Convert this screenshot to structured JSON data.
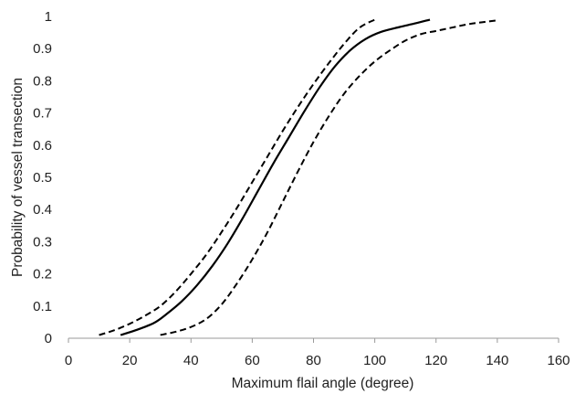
{
  "chart_data": {
    "type": "line",
    "title": "",
    "xlabel": "Maximum flail angle (degree)",
    "ylabel": "Probability of vessel transection",
    "xlim": [
      0,
      160
    ],
    "ylim": [
      0,
      1
    ],
    "xticks": [
      "0",
      "20",
      "40",
      "60",
      "80",
      "100",
      "120",
      "140",
      "160"
    ],
    "yticks": [
      "0",
      "0.1",
      "0.2",
      "0.3",
      "0.4",
      "0.5",
      "0.6",
      "0.7",
      "0.8",
      "0.9",
      "1"
    ],
    "grid": false,
    "legend": "none",
    "series": [
      {
        "style": "solid",
        "color": "#000000",
        "points": [
          [
            17,
            0.01
          ],
          [
            22,
            0.025
          ],
          [
            28,
            0.048
          ],
          [
            32,
            0.075
          ],
          [
            37,
            0.115
          ],
          [
            42,
            0.165
          ],
          [
            47,
            0.225
          ],
          [
            52,
            0.295
          ],
          [
            57,
            0.375
          ],
          [
            62,
            0.46
          ],
          [
            67,
            0.545
          ],
          [
            72,
            0.625
          ],
          [
            77,
            0.705
          ],
          [
            82,
            0.78
          ],
          [
            87,
            0.845
          ],
          [
            92,
            0.895
          ],
          [
            97,
            0.93
          ],
          [
            102,
            0.952
          ],
          [
            108,
            0.967
          ],
          [
            113,
            0.978
          ],
          [
            118,
            0.99
          ]
        ]
      },
      {
        "style": "dashed",
        "color": "#000000",
        "points": [
          [
            10,
            0.01
          ],
          [
            15,
            0.025
          ],
          [
            20,
            0.045
          ],
          [
            25,
            0.07
          ],
          [
            30,
            0.1
          ],
          [
            35,
            0.145
          ],
          [
            40,
            0.2
          ],
          [
            45,
            0.26
          ],
          [
            50,
            0.33
          ],
          [
            55,
            0.405
          ],
          [
            60,
            0.485
          ],
          [
            65,
            0.565
          ],
          [
            70,
            0.645
          ],
          [
            75,
            0.72
          ],
          [
            80,
            0.79
          ],
          [
            85,
            0.855
          ],
          [
            90,
            0.915
          ],
          [
            95,
            0.965
          ],
          [
            100,
            0.99
          ]
        ]
      },
      {
        "style": "dashed",
        "color": "#000000",
        "points": [
          [
            30,
            0.01
          ],
          [
            35,
            0.02
          ],
          [
            40,
            0.035
          ],
          [
            45,
            0.06
          ],
          [
            50,
            0.105
          ],
          [
            55,
            0.17
          ],
          [
            60,
            0.245
          ],
          [
            65,
            0.33
          ],
          [
            70,
            0.425
          ],
          [
            75,
            0.52
          ],
          [
            80,
            0.61
          ],
          [
            85,
            0.69
          ],
          [
            90,
            0.76
          ],
          [
            95,
            0.815
          ],
          [
            100,
            0.86
          ],
          [
            105,
            0.895
          ],
          [
            110,
            0.925
          ],
          [
            115,
            0.945
          ],
          [
            120,
            0.955
          ],
          [
            125,
            0.965
          ],
          [
            130,
            0.975
          ],
          [
            135,
            0.982
          ],
          [
            140,
            0.988
          ]
        ]
      }
    ]
  }
}
